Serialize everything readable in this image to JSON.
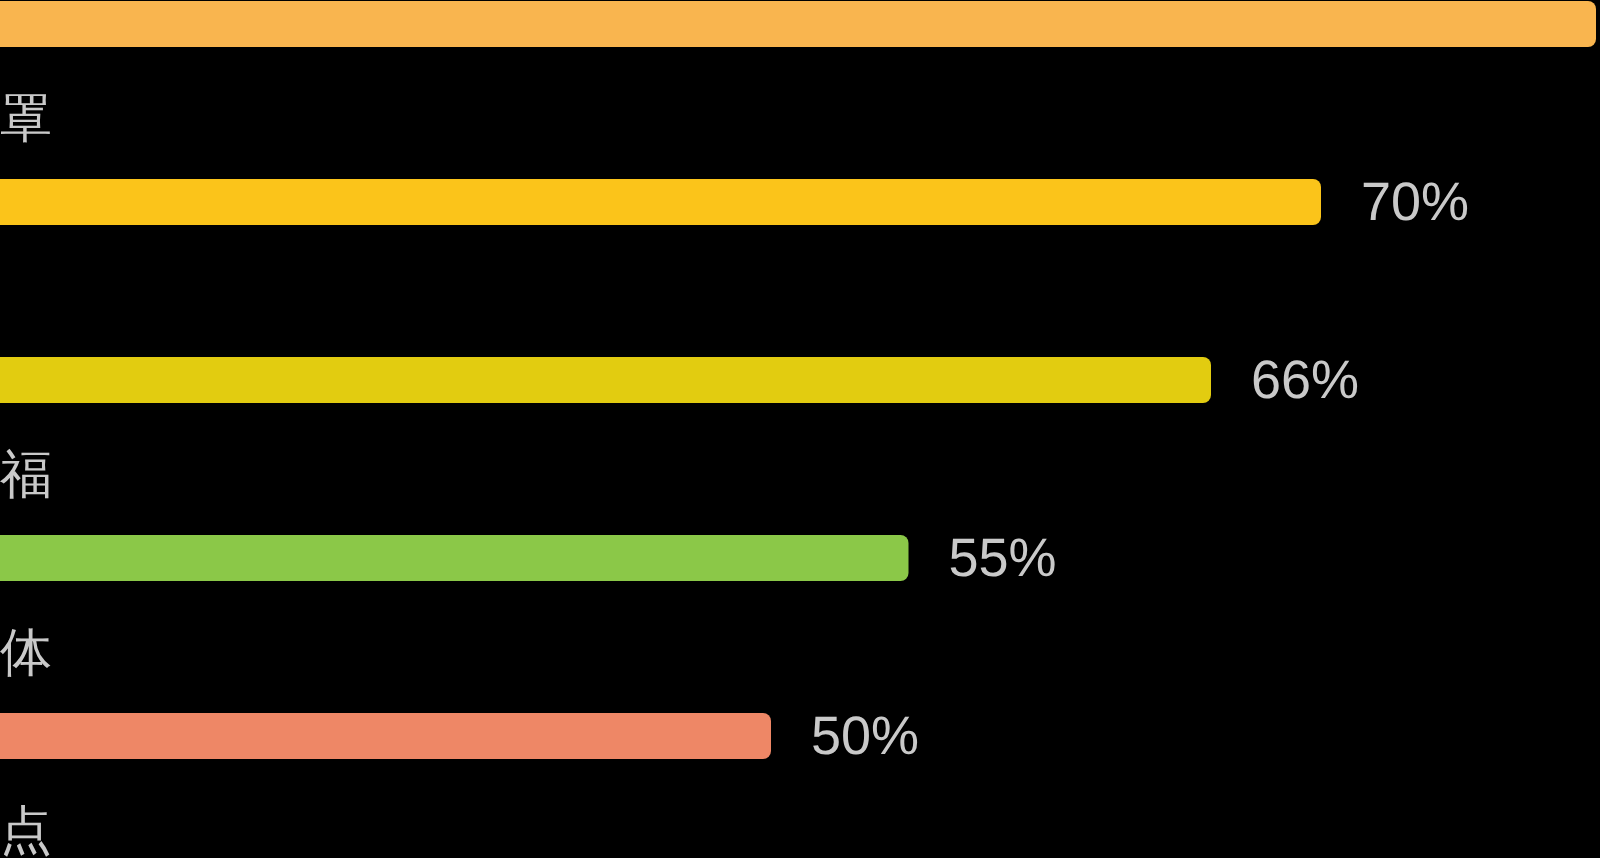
{
  "chart_data": {
    "type": "bar",
    "orientation": "horizontal",
    "categories": [
      null,
      "罩",
      null,
      "福",
      "体",
      "点"
    ],
    "values": [
      80,
      70,
      66,
      55,
      50,
      null
    ],
    "colors": [
      "#f9b54f",
      "#fbc41a",
      "#e2cc10",
      "#8bc848",
      "#ee8766",
      null
    ],
    "value_labels": [
      null,
      "70%",
      "66%",
      "55%",
      "50%",
      null
    ]
  }
}
